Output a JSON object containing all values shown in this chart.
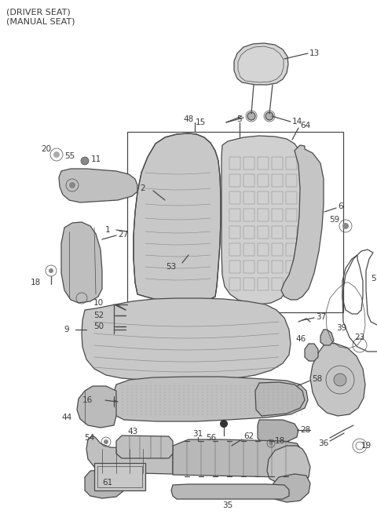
{
  "title_line1": "(DRIVER SEAT)",
  "title_line2": "(MANUAL SEAT)",
  "bg_color": "#ffffff",
  "line_color": "#4a4a4a",
  "text_color": "#3a3a3a",
  "fig_width": 4.8,
  "fig_height": 6.55,
  "dpi": 100
}
